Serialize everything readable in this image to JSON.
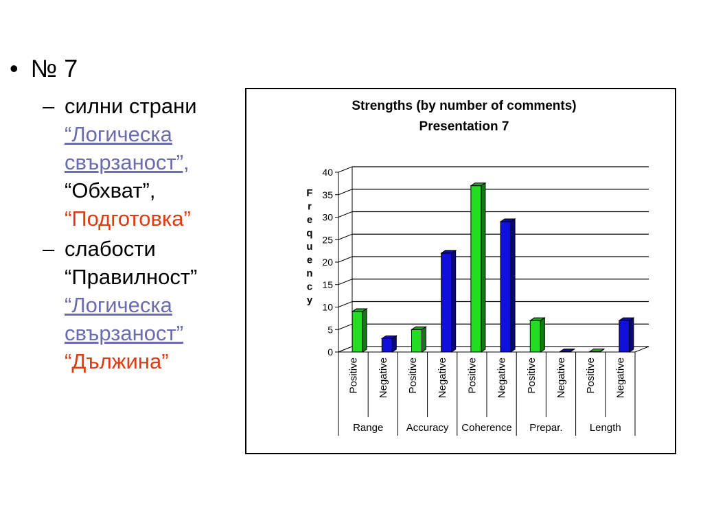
{
  "slide": {
    "heading_bullet": "•",
    "heading": "№ 7",
    "strengths": {
      "dash": "–",
      "label": "силни страни",
      "item1": "“Логическа свързаност”,",
      "item2": "“Обхват”,",
      "item3": "“Подготовка”"
    },
    "weaknesses": {
      "dash": "–",
      "label": "слабости",
      "item1": "“Правилност”",
      "item2": "“Логическа свързаност”",
      "item3": "“Дължина”"
    },
    "colors": {
      "link": "#6b6bb0",
      "accent": "#e03a10"
    }
  },
  "chart_data": {
    "type": "bar",
    "title": "Strengths (by number of comments)",
    "subtitle": "Presentation 7",
    "ylabel": "Frequency",
    "ylim": [
      0,
      40
    ],
    "yticks": [
      0,
      5,
      10,
      15,
      20,
      25,
      30,
      35,
      40
    ],
    "grid": true,
    "groups": [
      "Range",
      "Accuracy",
      "Coherence",
      "Prepar.",
      "Length"
    ],
    "categories": [
      "Positive",
      "Negative",
      "Positive",
      "Negative",
      "Positive",
      "Negative",
      "Positive",
      "Negative",
      "Positive",
      "Negative"
    ],
    "values": [
      9,
      3,
      5,
      22,
      37,
      29,
      7,
      0,
      0,
      7
    ],
    "colors": [
      "#22dd22",
      "#1010dd",
      "#22dd22",
      "#1010dd",
      "#22dd22",
      "#1010dd",
      "#22dd22",
      "#1010dd",
      "#22dd22",
      "#1010dd"
    ]
  }
}
